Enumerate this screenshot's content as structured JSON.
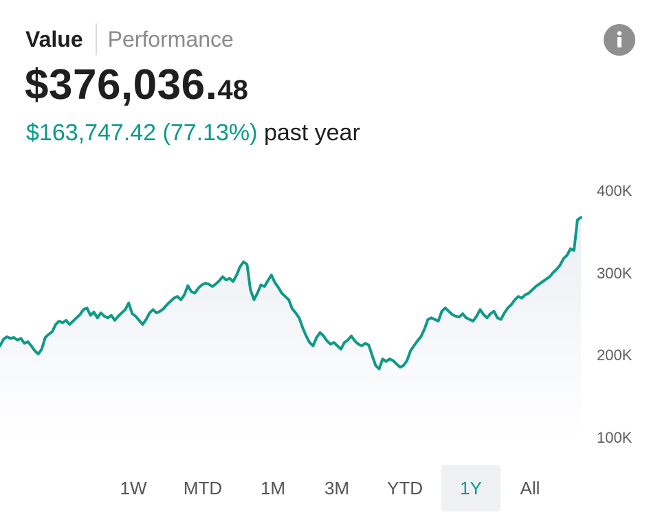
{
  "tabs": {
    "value_label": "Value",
    "performance_label": "Performance",
    "active": "Value"
  },
  "info_icon": "info-icon",
  "summary": {
    "total_main": "$376,036.",
    "total_cents": "48",
    "change_text": "$163,747.42 (77.13%)",
    "period_text": "past year"
  },
  "colors": {
    "accent": "#0a9a87",
    "line": "#0e9a86",
    "area_fill_top": "#eceef5",
    "selected_range_bg": "#eef0f4",
    "info_icon_bg": "#8f8f8f"
  },
  "chart_data": {
    "type": "area",
    "ylim": [
      100000,
      400000
    ],
    "y_tick_labels": [
      "400K",
      "300K",
      "200K",
      "100K"
    ],
    "y_tick_values": [
      400000,
      300000,
      200000,
      100000
    ],
    "grid": false,
    "series": [
      {
        "values": [
          212000,
          220000,
          223000,
          221000,
          222000,
          219000,
          221000,
          215000,
          217000,
          212000,
          206000,
          202000,
          208000,
          222000,
          226000,
          229000,
          238000,
          242000,
          240000,
          243000,
          238000,
          242000,
          246000,
          250000,
          256000,
          258000,
          249000,
          253000,
          246000,
          252000,
          248000,
          246000,
          249000,
          243000,
          248000,
          252000,
          256000,
          264000,
          251000,
          248000,
          243000,
          238000,
          244000,
          252000,
          256000,
          252000,
          254000,
          257000,
          262000,
          266000,
          270000,
          272000,
          268000,
          274000,
          285000,
          278000,
          276000,
          282000,
          286000,
          288000,
          287000,
          284000,
          287000,
          291000,
          296000,
          292000,
          294000,
          290000,
          298000,
          308000,
          314000,
          311000,
          280000,
          268000,
          276000,
          286000,
          284000,
          291000,
          298000,
          289000,
          283000,
          276000,
          272000,
          268000,
          257000,
          252000,
          246000,
          234000,
          224000,
          216000,
          212000,
          222000,
          228000,
          224000,
          218000,
          214000,
          216000,
          212000,
          208000,
          216000,
          219000,
          224000,
          218000,
          214000,
          212000,
          215000,
          213000,
          200000,
          188000,
          184000,
          196000,
          193000,
          196000,
          194000,
          190000,
          186000,
          188000,
          194000,
          206000,
          212000,
          218000,
          223000,
          232000,
          244000,
          246000,
          244000,
          242000,
          254000,
          258000,
          254000,
          250000,
          248000,
          247000,
          251000,
          246000,
          244000,
          242000,
          248000,
          256000,
          250000,
          246000,
          251000,
          254000,
          246000,
          244000,
          252000,
          258000,
          262000,
          268000,
          272000,
          270000,
          274000,
          276000,
          280000,
          284000,
          287000,
          290000,
          293000,
          296000,
          301000,
          305000,
          310000,
          318000,
          322000,
          330000,
          328000,
          365000,
          368000
        ]
      }
    ]
  },
  "ranges": [
    {
      "label": "1W",
      "selected": false
    },
    {
      "label": "MTD",
      "selected": false
    },
    {
      "label": "1M",
      "selected": false
    },
    {
      "label": "3M",
      "selected": false
    },
    {
      "label": "YTD",
      "selected": false
    },
    {
      "label": "1Y",
      "selected": true
    },
    {
      "label": "All",
      "selected": false
    }
  ]
}
